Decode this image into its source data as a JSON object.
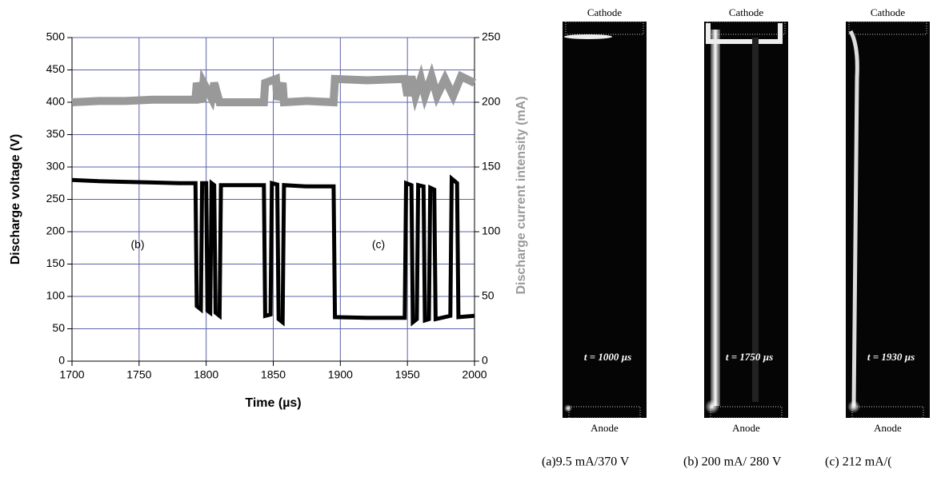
{
  "chart_data": {
    "type": "line",
    "xlabel": "Time (µs)",
    "ylabel": "Discharge voltage (V)",
    "y2label": "Discharge current intensity (mA)",
    "xlim": [
      1700,
      2000
    ],
    "xticks": [
      1700,
      1750,
      1800,
      1850,
      1900,
      1950,
      2000
    ],
    "ylim": [
      0,
      500
    ],
    "yticks": [
      0,
      50,
      100,
      150,
      200,
      250,
      300,
      350,
      400,
      450,
      500
    ],
    "y2lim": [
      0,
      250
    ],
    "y2ticks": [
      0,
      50,
      100,
      150,
      200,
      250
    ],
    "grid": true,
    "grid_color": "#5b63a8",
    "y2label_color": "#999999",
    "annotations": [
      "(b)",
      "(c)"
    ],
    "series": [
      {
        "name": "Discharge voltage",
        "color": "#000000",
        "x": [
          1700,
          1720,
          1740,
          1760,
          1780,
          1792,
          1793,
          1796,
          1797,
          1800,
          1801,
          1803,
          1804,
          1806,
          1807,
          1810,
          1811,
          1830,
          1843,
          1844,
          1848,
          1849,
          1853,
          1854,
          1857,
          1858,
          1875,
          1895,
          1896,
          1920,
          1948,
          1949,
          1953,
          1954,
          1957,
          1958,
          1962,
          1963,
          1966,
          1967,
          1970,
          1971,
          1982,
          1983,
          1987,
          1988,
          2000
        ],
        "values": [
          280,
          278,
          277,
          276,
          275,
          275,
          85,
          80,
          275,
          275,
          78,
          75,
          275,
          272,
          75,
          70,
          272,
          272,
          272,
          70,
          72,
          275,
          273,
          65,
          60,
          272,
          270,
          270,
          68,
          67,
          67,
          275,
          272,
          60,
          65,
          272,
          270,
          63,
          65,
          268,
          265,
          65,
          70,
          282,
          275,
          68,
          70
        ]
      },
      {
        "name": "Discharge current",
        "color": "#999999",
        "axis": "y2",
        "x": [
          1700,
          1720,
          1740,
          1760,
          1780,
          1792,
          1793,
          1797,
          1798,
          1804,
          1806,
          1810,
          1830,
          1843,
          1844,
          1852,
          1853,
          1857,
          1858,
          1875,
          1895,
          1896,
          1920,
          1948,
          1950,
          1953,
          1956,
          1960,
          1963,
          1968,
          1972,
          1978,
          1984,
          1990,
          2000
        ],
        "values": [
          200,
          201,
          201,
          202,
          202,
          202,
          215,
          200,
          215,
          203,
          215,
          200,
          200,
          200,
          215,
          218,
          202,
          215,
          200,
          201,
          200,
          218,
          217,
          218,
          205,
          220,
          205,
          218,
          205,
          220,
          205,
          218,
          205,
          220,
          215
        ]
      }
    ]
  },
  "panels": [
    {
      "top": "Cathode",
      "bottom": "Anode",
      "time": "t = 1000 µs",
      "caption": "(a)9.5 mA/370 V"
    },
    {
      "top": "Cathode",
      "bottom": "Anode",
      "time": "t = 1750 µs",
      "caption": "(b) 200 mA/ 280 V"
    },
    {
      "top": "Cathode",
      "bottom": "Anode",
      "time": "t = 1930 µs",
      "caption": "(c) 212 mA/("
    }
  ]
}
